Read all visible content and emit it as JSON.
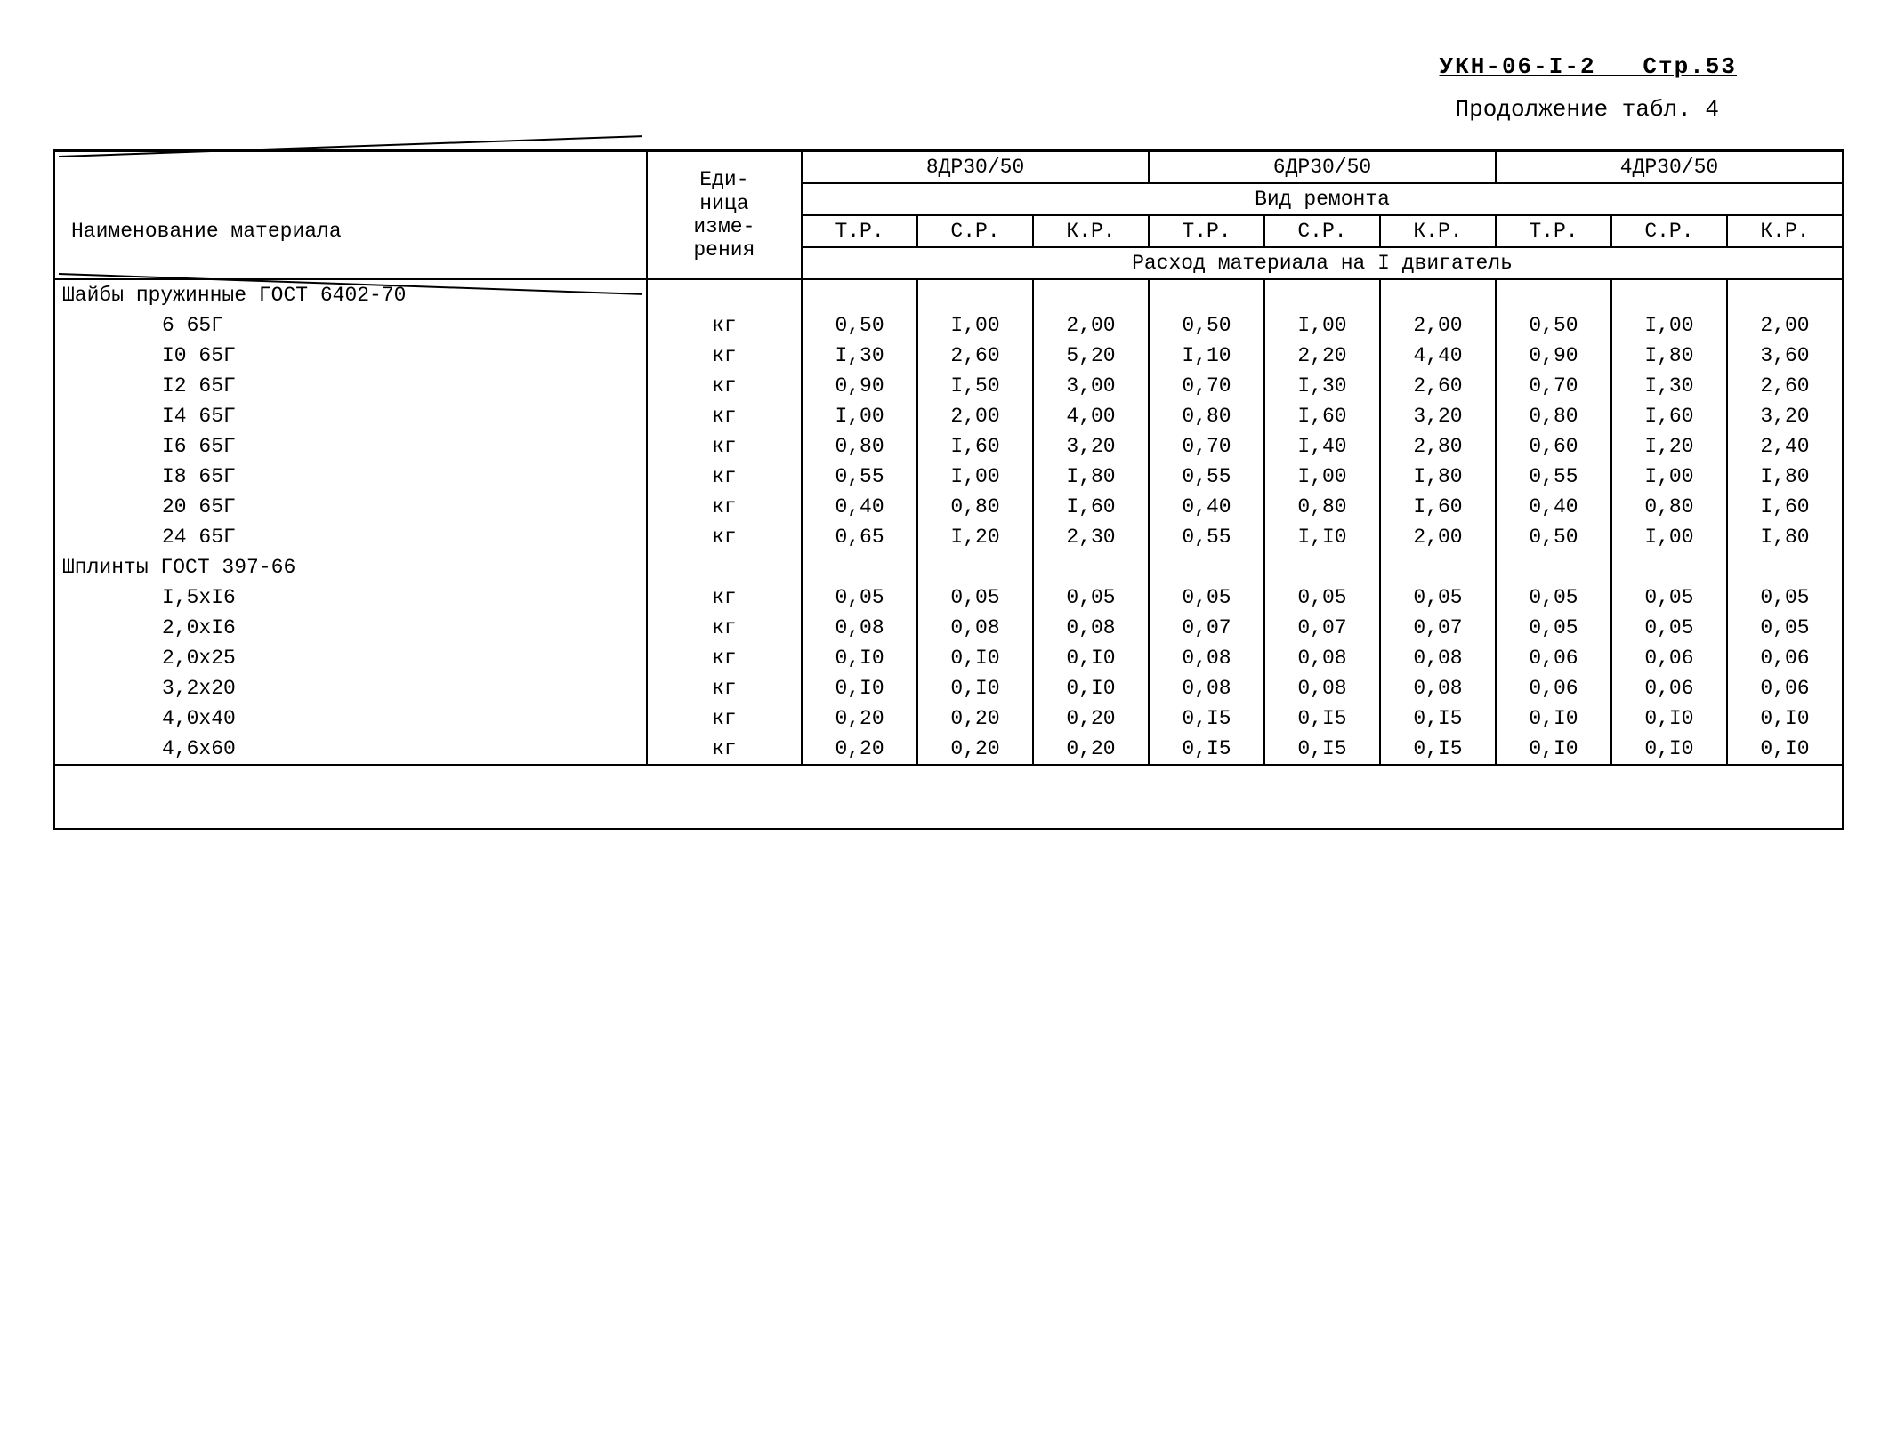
{
  "header": {
    "doc_code": "УКН-06-I-2",
    "page_label": "Стр.53",
    "continuation": "Продолжение табл. 4"
  },
  "table": {
    "name_header": "Наименование материала",
    "unit_header": "Еди-\nница\nизме-\nрения",
    "engine_groups": [
      "8ДР30/50",
      "6ДР30/50",
      "4ДР30/50"
    ],
    "repair_type_header": "Вид ремонта",
    "repair_columns": [
      "Т.Р.",
      "С.Р.",
      "К.Р."
    ],
    "consumption_header": "Расход материала на I двигатель",
    "colors": {
      "border": "#000000",
      "text": "#000000",
      "background": "#ffffff"
    },
    "fontsize_body": 23,
    "fontsize_header": 26,
    "groups": [
      {
        "title": "Шайбы пружинные ГОСТ 6402-70",
        "rows": [
          {
            "name": "6 65Г",
            "unit": "кг",
            "v": [
              "0,50",
              "I,00",
              "2,00",
              "0,50",
              "I,00",
              "2,00",
              "0,50",
              "I,00",
              "2,00"
            ]
          },
          {
            "name": "I0 65Г",
            "unit": "кг",
            "v": [
              "I,30",
              "2,60",
              "5,20",
              "I,10",
              "2,20",
              "4,40",
              "0,90",
              "I,80",
              "3,60"
            ]
          },
          {
            "name": "I2 65Г",
            "unit": "кг",
            "v": [
              "0,90",
              "I,50",
              "3,00",
              "0,70",
              "I,30",
              "2,60",
              "0,70",
              "I,30",
              "2,60"
            ]
          },
          {
            "name": "I4 65Г",
            "unit": "кг",
            "v": [
              "I,00",
              "2,00",
              "4,00",
              "0,80",
              "I,60",
              "3,20",
              "0,80",
              "I,60",
              "3,20"
            ]
          },
          {
            "name": "I6 65Г",
            "unit": "кг",
            "v": [
              "0,80",
              "I,60",
              "3,20",
              "0,70",
              "I,40",
              "2,80",
              "0,60",
              "I,20",
              "2,40"
            ]
          },
          {
            "name": "I8 65Г",
            "unit": "кг",
            "v": [
              "0,55",
              "I,00",
              "I,80",
              "0,55",
              "I,00",
              "I,80",
              "0,55",
              "I,00",
              "I,80"
            ]
          },
          {
            "name": "20 65Г",
            "unit": "кг",
            "v": [
              "0,40",
              "0,80",
              "I,60",
              "0,40",
              "0,80",
              "I,60",
              "0,40",
              "0,80",
              "I,60"
            ]
          },
          {
            "name": "24 65Г",
            "unit": "кг",
            "v": [
              "0,65",
              "I,20",
              "2,30",
              "0,55",
              "I,I0",
              "2,00",
              "0,50",
              "I,00",
              "I,80"
            ]
          }
        ]
      },
      {
        "title": "Шплинты   ГОСТ 397-66",
        "rows": [
          {
            "name": "I,5xI6",
            "unit": "кг",
            "v": [
              "0,05",
              "0,05",
              "0,05",
              "0,05",
              "0,05",
              "0,05",
              "0,05",
              "0,05",
              "0,05"
            ]
          },
          {
            "name": "2,0xI6",
            "unit": "кг",
            "v": [
              "0,08",
              "0,08",
              "0,08",
              "0,07",
              "0,07",
              "0,07",
              "0,05",
              "0,05",
              "0,05"
            ]
          },
          {
            "name": "2,0x25",
            "unit": "кг",
            "v": [
              "0,I0",
              "0,I0",
              "0,I0",
              "0,08",
              "0,08",
              "0,08",
              "0,06",
              "0,06",
              "0,06"
            ]
          },
          {
            "name": "3,2x20",
            "unit": "кг",
            "v": [
              "0,I0",
              "0,I0",
              "0,I0",
              "0,08",
              "0,08",
              "0,08",
              "0,06",
              "0,06",
              "0,06"
            ]
          },
          {
            "name": "4,0x40",
            "unit": "кг",
            "v": [
              "0,20",
              "0,20",
              "0,20",
              "0,I5",
              "0,I5",
              "0,I5",
              "0,I0",
              "0,I0",
              "0,I0"
            ]
          },
          {
            "name": "4,6x60",
            "unit": "кг",
            "v": [
              "0,20",
              "0,20",
              "0,20",
              "0,I5",
              "0,I5",
              "0,I5",
              "0,I0",
              "0,I0",
              "0,I0"
            ]
          }
        ]
      }
    ]
  }
}
